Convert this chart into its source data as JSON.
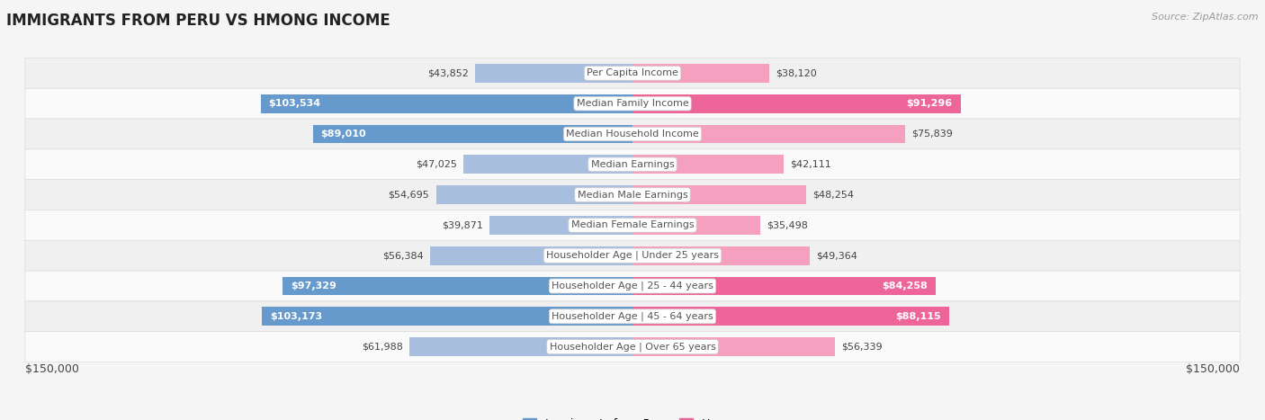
{
  "title": "IMMIGRANTS FROM PERU VS HMONG INCOME",
  "source": "Source: ZipAtlas.com",
  "categories": [
    "Per Capita Income",
    "Median Family Income",
    "Median Household Income",
    "Median Earnings",
    "Median Male Earnings",
    "Median Female Earnings",
    "Householder Age | Under 25 years",
    "Householder Age | 25 - 44 years",
    "Householder Age | 45 - 64 years",
    "Householder Age | Over 65 years"
  ],
  "peru_values": [
    43852,
    103534,
    89010,
    47025,
    54695,
    39871,
    56384,
    97329,
    103173,
    61988
  ],
  "hmong_values": [
    38120,
    91296,
    75839,
    42111,
    48254,
    35498,
    49364,
    84258,
    88115,
    56339
  ],
  "peru_labels": [
    "$43,852",
    "$103,534",
    "$89,010",
    "$47,025",
    "$54,695",
    "$39,871",
    "$56,384",
    "$97,329",
    "$103,173",
    "$61,988"
  ],
  "hmong_labels": [
    "$38,120",
    "$91,296",
    "$75,839",
    "$42,111",
    "$48,254",
    "$35,498",
    "$49,364",
    "$84,258",
    "$88,115",
    "$56,339"
  ],
  "max_value": 150000,
  "peru_color_light": "#a8bede",
  "peru_color_dark": "#6699cc",
  "hmong_color_light": "#f4a0be",
  "hmong_color_dark": "#ee6699",
  "peru_dark_threshold": 80000,
  "hmong_dark_threshold": 80000,
  "row_bg_even": "#f0f0f0",
  "row_bg_odd": "#fafafa",
  "row_border_color": "#dddddd",
  "background_color": "#f5f5f5",
  "center_label_color": "#555555",
  "bar_height": 0.62,
  "legend_peru": "Immigrants from Peru",
  "legend_hmong": "Hmong",
  "title_fontsize": 12,
  "source_fontsize": 8,
  "label_fontsize": 8,
  "cat_fontsize": 8
}
